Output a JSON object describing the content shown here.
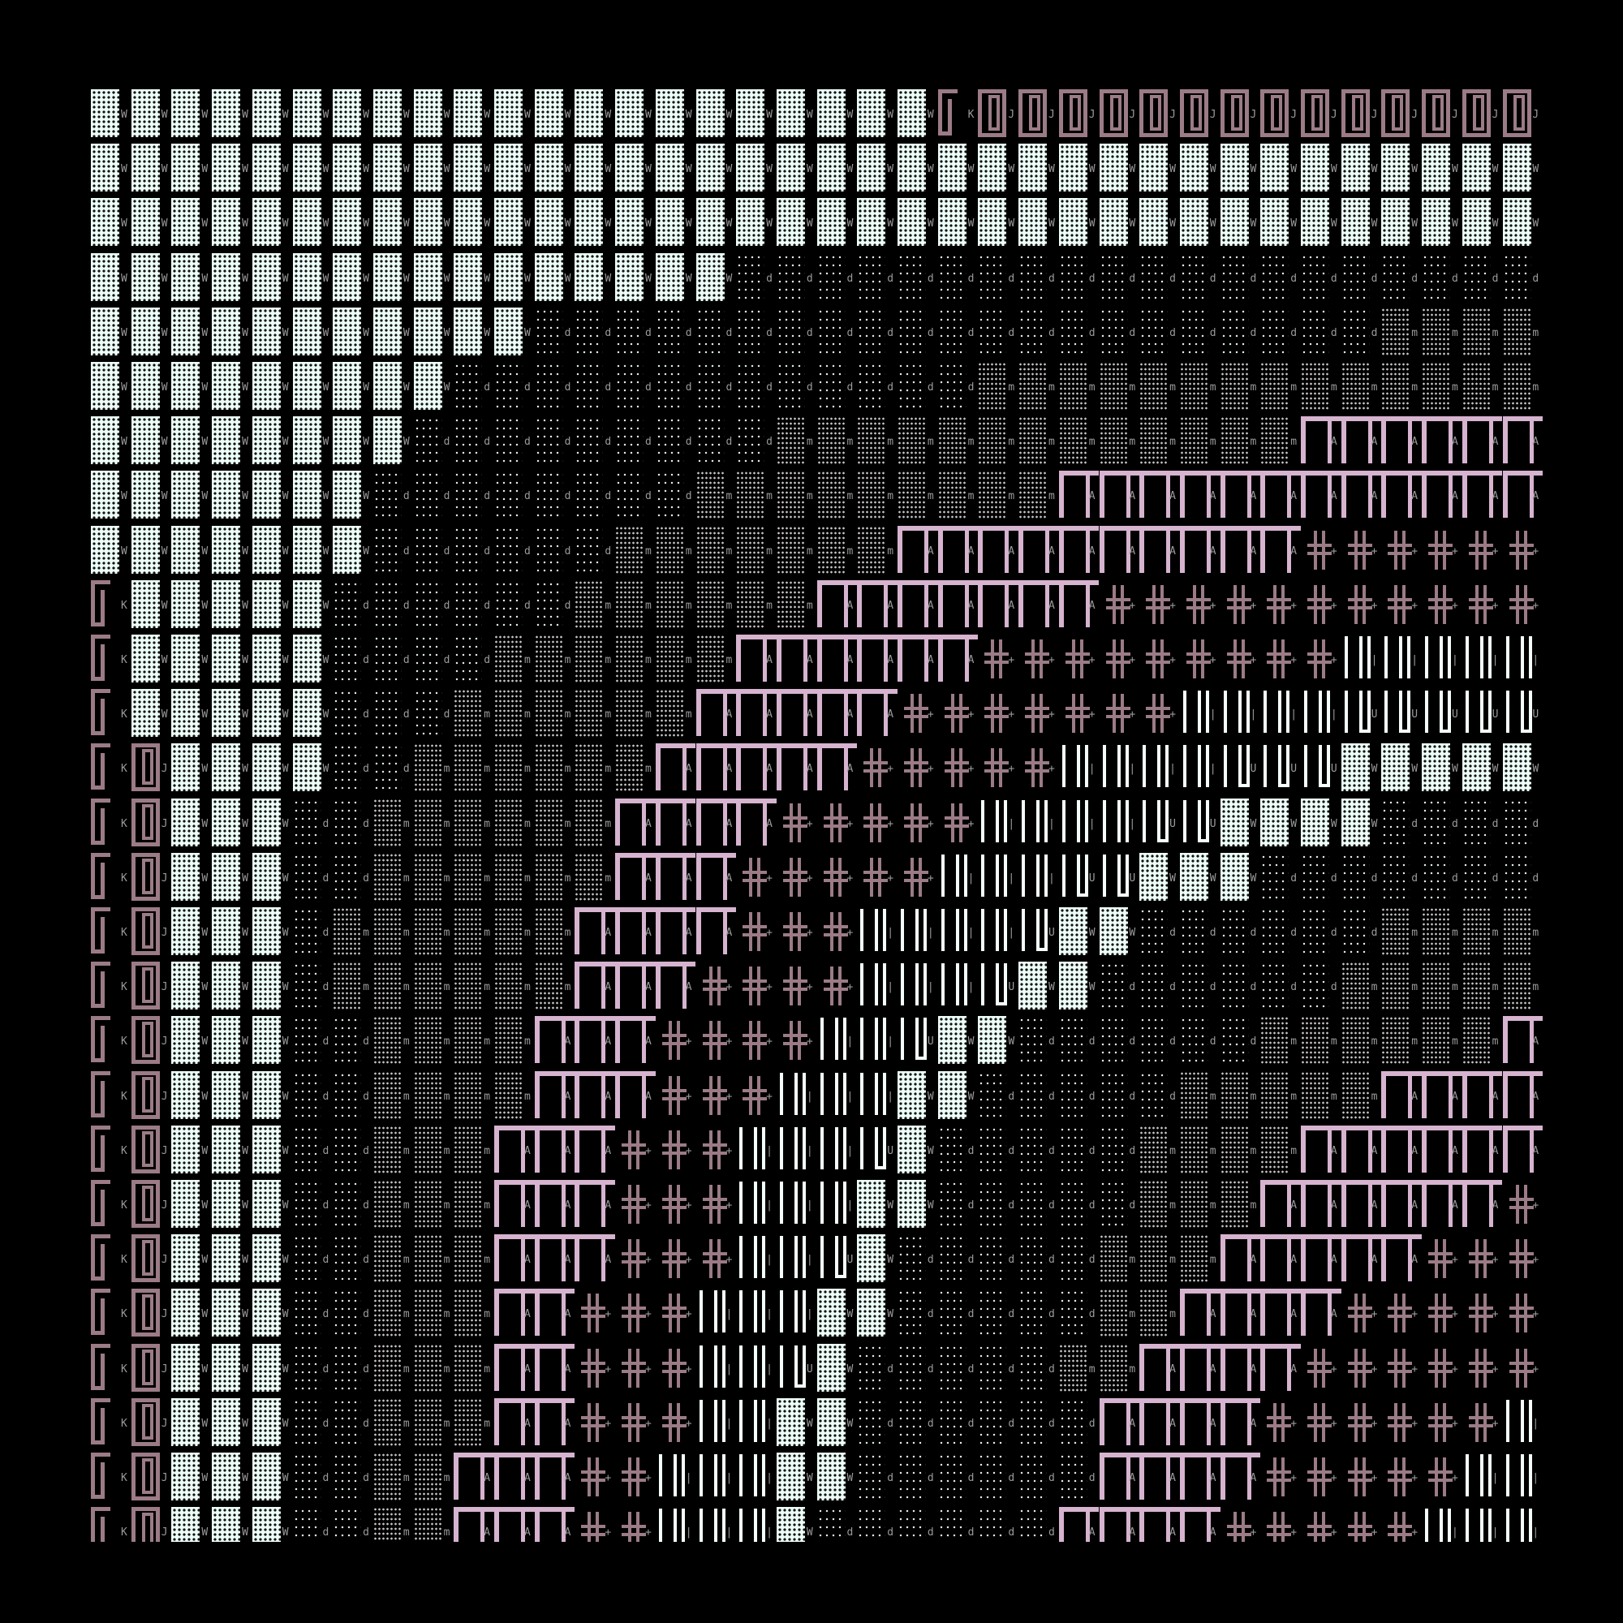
{
  "colors": {
    "background": "#000000",
    "block": "#ecfdf8",
    "key": "#9b7b86",
    "arch": "#d6b3cf",
    "bars": "#f4fffb"
  },
  "glyph_legend": {
    "W": "dense-dot-block",
    "d": "sparse-dots",
    "m": "medium-dots",
    "K": "key-glyph",
    "J": "boxed-key-glyph",
    "A": "arch-glyph",
    "+": "cross-glyph",
    "|": "double-bar-glyph",
    "U": "bar-cup-glyph"
  },
  "glyph_rows": [
    "WWWWWWWWWWWWWWWWWWWWWKJJJJJJJJJJJJJJ",
    "WWWWWWWWWWWWWWWWWWWWWWWWWWWWWWWWWWWW",
    "WWWWWWWWWWWWWWWWWWWWWWWWWWWWWWWWWWWW",
    "WWWWWWWWWWWWWWWWdddddddddddddddddddd",
    "WWWWWWWWWWWdddddddddddddddddddddmmmm",
    "WWWWWWWWWdddddddddddddmmmmmmmmmmmmmm",
    "WWWWWWWWdddddddddmmmmmmmmmmmmmAAAAAA",
    "WWWWWWWddddddddmmmmmmmmmAAAAAAAAAAAA",
    "WWWWWWWddddddmmmmmmmAAAAAAAAAA++++++",
    "KWWWWWddddddmmmmmmAAAAAAA+++++++++++",
    "KWWWWWddddmmmmmmAAAAAA+++++++++|||||",
    "KWWWWWdddmmmmmmAAAAA+++++++||||UUUUU",
    "KJWWWWddmmmmmmAAAAA+++++||||UUUWWWWW",
    "KJWWWddmmmmmmAAAA+++++||||UUWWWWdddd",
    "KJWWWddmmmmmmAAA+++++|||UUWWWddddddd",
    "KJWWWdmmmmmmAAAA+++||||UWWddddddmmmm",
    "KJWWWdmmmmmmAAA++++|||UWWddddddmmmmm",
    "KJWWWddmmmmAAA++++||UWWddddddmmmmmmA",
    "KJWWWddmmmmAAA+++|||WWdddddmmmmmAAAA",
    "KJWWWddmmmAAA+++|||UWdddddmmmmAAAAAA",
    "KJWWWddmmmAAA+++|||WWdddddmmmAAAAAA+",
    "KJWWWddmmmAAA+++||UWdddddmmmAAAAA+++",
    "KJWWWddmmmAA+++|||WWdddddmmAAAA+++++",
    "KJWWWddmmmAA+++||UWdddddmmAAAA++++++",
    "KJWWWddmmmAA+++||WWddddddAAAA++++++|",
    "KJWWWddmmAAA++|||WWddddddAAAA+++++||",
    "KJWWWddmmAAA++|||WddddddAAAA+++++|||"
  ]
}
